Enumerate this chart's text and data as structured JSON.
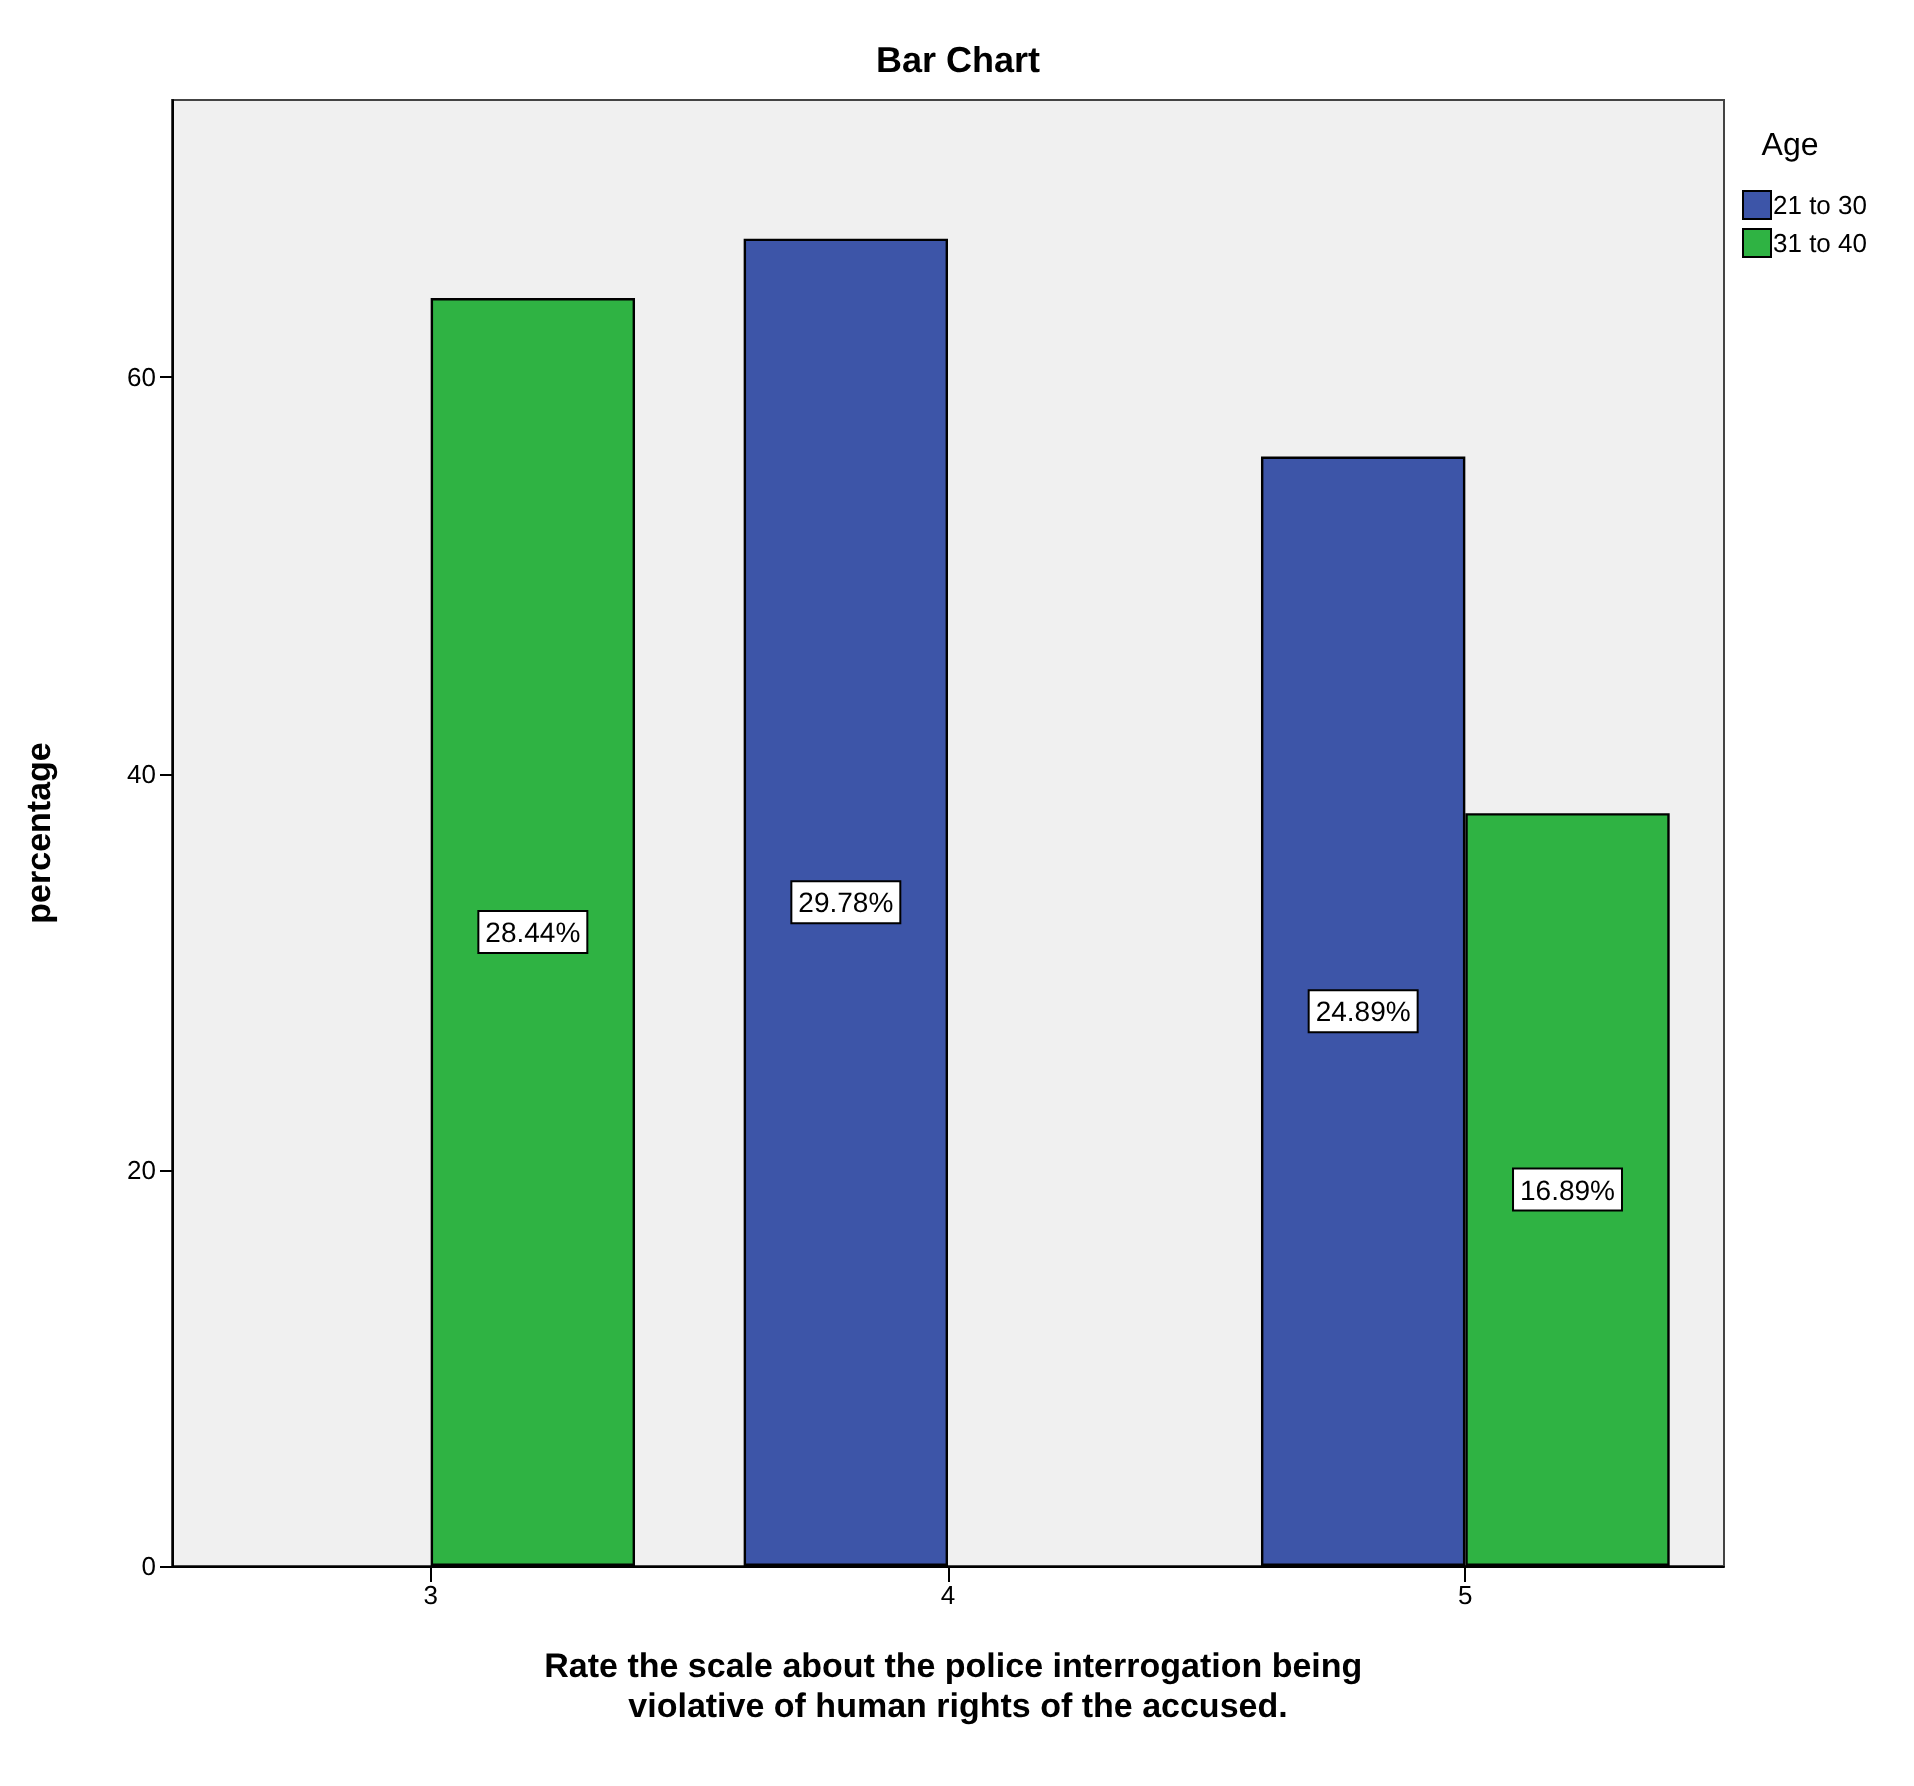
{
  "chart_data": {
    "type": "bar",
    "title": "Bar Chart",
    "xlabel": "Rate the scale about the police interrogation being violative of human rights of the accused.",
    "ylabel": "percentage",
    "legend_title": "Age",
    "categories": [
      "3",
      "4",
      "5"
    ],
    "series": [
      {
        "name": "21 to 30",
        "color": "#3d55a8",
        "values": [
          null,
          67,
          56
        ]
      },
      {
        "name": "31 to 40",
        "color": "#2fb343",
        "values": [
          64,
          null,
          38
        ]
      }
    ],
    "annotations": [
      {
        "text": "28.44%",
        "x": "3",
        "y": 32
      },
      {
        "text": "29.78%",
        "x": "4",
        "y": 33.5
      },
      {
        "text": "24.89%",
        "x": "5",
        "y": 28
      },
      {
        "text": "16.89%",
        "x": "5",
        "y": 19
      }
    ],
    "ylim": [
      0,
      74
    ],
    "yticks": [
      0,
      20,
      40,
      60
    ],
    "grid": false,
    "legend": "right"
  }
}
